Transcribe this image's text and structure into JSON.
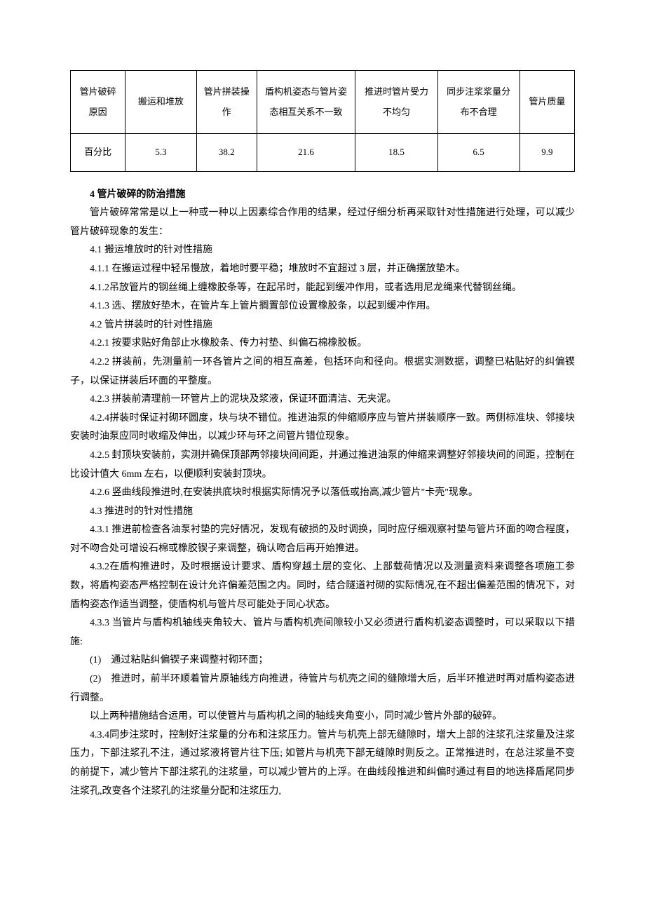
{
  "table": {
    "col_widths": [
      "10%",
      "13%",
      "11%",
      "18%",
      "15%",
      "15%",
      "10%"
    ],
    "header_row": [
      "管片破碎原因",
      "搬运和堆放",
      "管片拼装操作",
      "盾构机姿态与管片姿态相互关系不一致",
      "推进时管片受力不均匀",
      "同步注浆浆量分布不合理",
      "管片质量"
    ],
    "data_row_label": "百分比",
    "data_row": [
      "5.3",
      "38.2",
      "21.6",
      "18.5",
      "6.5",
      "9.9"
    ]
  },
  "section4_title": "4 管片破碎的防治措施",
  "para_intro": "管片破碎常常是以上一种或一种以上因素综合作用的结果，经过仔细分析再采取针对性措施进行处理，可以减少管片破碎现象的发生：",
  "p4_1": "4.1 搬运堆放时的针对性措施",
  "p4_1_1": "4.1.1 在搬运过程中轻吊慢放，着地时要平稳；堆放时不宜超过 3 层，并正确摆放垫木。",
  "p4_1_2": "4.1.2吊放管片的钢丝绳上缠橡胶条等，在起吊时，能起到缓冲作用，或者选用尼龙绳来代替钢丝绳。",
  "p4_1_3": "4.1.3 选、摆放好垫木，在管片车上管片搁置部位设置橡胶条，以起到缓冲作用。",
  "p4_2": "4.2 管片拼装时的针对性措施",
  "p4_2_1": "4.2.1 按要求贴好角部止水橡胶条、传力衬垫、纠偏石棉橡胶板。",
  "p4_2_2": "4.2.2 拼装前，先测量前一环各管片之间的相互高差，包括环向和径向。根据实测数据，调整已粘贴好的纠偏锲子，以保证拼装后环面的平整度。",
  "p4_2_3": "4.2.3 拼装前清理前一环管片上的泥块及浆液，保证环面清洁、无夹泥。",
  "p4_2_4": "4.2.4拼装时保证衬砌环圆度，块与块不错位。推进油泵的伸缩顺序应与管片拼装顺序一致。两侧标准块、邻接块安装时油泵应同时收缩及伸出，以减少环与环之间管片错位现象。",
  "p4_2_5": "4.2.5 封顶块安装前，实测并确保顶部两邻接块间间距，并通过推进油泵的伸缩来调整好邻接块间的间距，控制在比设计值大 6mm 左右，以便顺利安装封顶块。",
  "p4_2_6": "4.2.6 竖曲线段推进时,在安装拱底块时根据实际情况予以落低或抬高,减少管片\"卡壳\"现象。",
  "p4_3": "4.3 推进时的针对性措施",
  "p4_3_1": "4.3.1 推进前检查各油泵衬垫的完好情况，发现有破损的及时调换，同时应仔细观察衬垫与管片环面的吻合程度，对不吻合处可增设石棉或橡胶锲子来调整，确认吻合后再开始推进。",
  "p4_3_2": "4.3.2在盾构推进时，及时根据设计要求、盾构穿越土层的变化、上部载荷情况以及测量资料来调整各项施工参数，将盾构姿态严格控制在设计允许偏差范围之内。同时，结合隧道衬砌的实际情况,在不超出偏差范围的情况下，对盾构姿态作适当调整，使盾构机与管片尽可能处于同心状态。",
  "p4_3_3": "4.3.3 当管片与盾构机轴线夹角较大、管片与盾构机壳间隙较小又必须进行盾构机姿态调整时，可以采取以下措施:",
  "p4_3_3_1": "(1)　通过粘贴纠偏锲子来调整衬砌环面；",
  "p4_3_3_2": "(2)　推进时，前半环顺着管片原轴线方向推进，待管片与机壳之间的缝隙增大后，后半环推进时再对盾构姿态进行调整。",
  "p4_3_3_sum": "以上两种措施结合运用，可以使管片与盾构机之间的轴线夹角变小，同时减少管片外部的破碎。",
  "p4_3_4": "4.3.4同步注浆时，控制好注浆量的分布和注浆压力。管片与机壳上部无缝隙时，增大上部的注浆孔注浆量及注浆压力，下部注浆孔不注，通过浆液将管片往下压; 如管片与机壳下部无缝隙时则反之。正常推进时，在总注浆量不变的前提下，减少管片下部注浆孔的注浆量，可以减少管片的上浮。在曲线段推进和纠偏时通过有目的地选择盾尾同步注浆孔,改变各个注浆孔的注浆量分配和注浆压力,"
}
